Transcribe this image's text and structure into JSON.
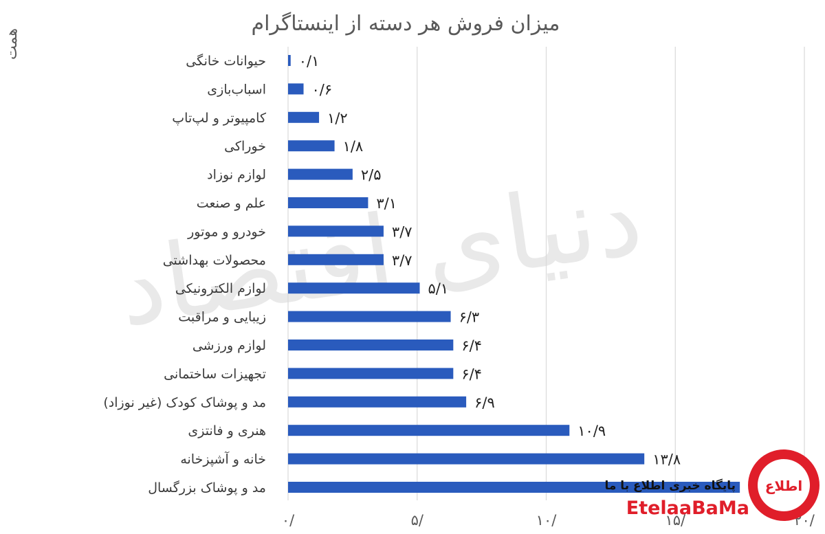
{
  "chart_data": {
    "type": "bar",
    "orientation": "horizontal",
    "title": "میزان فروش هر دسته از اینستاگرام",
    "ylabel": "همت",
    "categories": [
      "حیوانات خانگی",
      "اسباب‌بازی",
      "کامپیوتر و لپ‌تاپ",
      "خوراکی",
      "لوازم نوزاد",
      "علم و صنعت",
      "خودرو و موتور",
      "محصولات بهداشتی",
      "لوازم الکترونیکی",
      "زیبایی و مراقبت",
      "لوازم ورزشی",
      "تجهیزات ساختمانی",
      "مد و پوشاک کودک (غیر نوزاد)",
      "هنری و فانتزی",
      "خانه و آشپزخانه",
      "مد و پوشاک بزرگسال"
    ],
    "values": [
      0.1,
      0.6,
      1.2,
      1.8,
      2.5,
      3.1,
      3.7,
      3.7,
      5.1,
      6.3,
      6.4,
      6.4,
      6.9,
      10.9,
      13.8,
      17.5
    ],
    "value_labels": [
      "۰/۱",
      "۰/۶",
      "۱/۲",
      "۱/۸",
      "۲/۵",
      "۳/۱",
      "۳/۷",
      "۳/۷",
      "۵/۱",
      "۶/۳",
      "۶/۴",
      "۶/۴",
      "۶/۹",
      "۱۰/۹",
      "۱۳/۸",
      ""
    ],
    "xlim": [
      0,
      20
    ],
    "xticks": [
      0,
      5,
      10,
      15,
      20
    ],
    "xtick_labels": [
      "۰/",
      "۵/",
      "۱۰/",
      "۱۵/",
      "۲۰/"
    ],
    "bar_color": "#2a5bbd",
    "grid": "vertical",
    "legend": "none"
  },
  "watermark": "دنیای اقتصاد",
  "logo": {
    "site_name": "پایگاه خبری اطلاع با ما",
    "brand": "EtelaaBaMa",
    "mark": "اطلاع",
    "accent": "#e01e2a"
  }
}
